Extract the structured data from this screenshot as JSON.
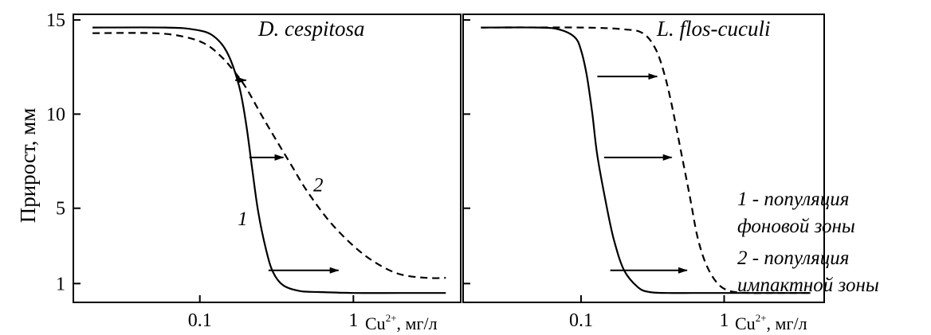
{
  "chart_data": [
    {
      "type": "line",
      "title": "D. cespitosa",
      "ylabel": "Прирост, мм",
      "xlabel": "Cu",
      "xlabel_sup": "2+",
      "xlabel_unit": ", мг/л",
      "xscale": "log",
      "xlim": [
        0.015,
        5
      ],
      "ylim": [
        0,
        15.3
      ],
      "x_ticks": [
        0.1,
        1
      ],
      "x_tick_labels": [
        "0.1",
        "1"
      ],
      "y_ticks": [
        1,
        5,
        10,
        15
      ],
      "y_tick_labels": [
        "1",
        "5",
        "10",
        "15"
      ],
      "series": [
        {
          "name": "1",
          "style": "solid",
          "x": [
            0.02,
            0.06,
            0.09,
            0.12,
            0.15,
            0.18,
            0.2,
            0.22,
            0.24,
            0.27,
            0.3,
            0.35,
            0.45,
            0.6,
            1,
            2,
            4
          ],
          "y": [
            14.6,
            14.6,
            14.5,
            14.2,
            13.3,
            11.5,
            9.5,
            7.0,
            4.8,
            2.8,
            1.6,
            0.9,
            0.6,
            0.55,
            0.5,
            0.5,
            0.5
          ]
        },
        {
          "name": "2",
          "style": "dashed",
          "x": [
            0.02,
            0.05,
            0.08,
            0.11,
            0.14,
            0.17,
            0.2,
            0.25,
            0.3,
            0.4,
            0.5,
            0.7,
            1,
            1.4,
            2,
            3,
            4
          ],
          "y": [
            14.3,
            14.3,
            14.1,
            13.7,
            13.0,
            12.2,
            11.4,
            10.0,
            8.9,
            7.2,
            5.9,
            4.3,
            3.0,
            2.1,
            1.5,
            1.3,
            1.3
          ]
        }
      ],
      "arrows": [
        {
          "x1": 0.17,
          "x2": 0.2,
          "y": 11.8
        },
        {
          "x1": 0.21,
          "x2": 0.35,
          "y": 7.7
        },
        {
          "x1": 0.28,
          "x2": 0.8,
          "y": 1.7
        }
      ],
      "labels": [
        {
          "text": "1",
          "x": 0.19,
          "y": 4.1
        },
        {
          "text": "2",
          "x": 0.59,
          "y": 5.9
        }
      ]
    },
    {
      "type": "line",
      "title": "L. flos-cuculi",
      "xlabel": "Cu",
      "xlabel_sup": "2+",
      "xlabel_unit": ", мг/л",
      "xscale": "log",
      "xlim": [
        0.015,
        5
      ],
      "ylim": [
        0,
        15.3
      ],
      "x_ticks": [
        0.1,
        1
      ],
      "x_tick_labels": [
        "0.1",
        "1"
      ],
      "series": [
        {
          "name": "1",
          "style": "solid",
          "x": [
            0.02,
            0.05,
            0.07,
            0.09,
            0.1,
            0.11,
            0.12,
            0.13,
            0.15,
            0.17,
            0.2,
            0.25,
            0.3,
            0.4,
            0.6,
            1,
            2,
            4
          ],
          "y": [
            14.6,
            14.6,
            14.5,
            14.1,
            13.4,
            12.0,
            10.0,
            7.8,
            5.2,
            3.3,
            1.7,
            0.8,
            0.55,
            0.5,
            0.5,
            0.5,
            0.5,
            0.5
          ]
        },
        {
          "name": "2",
          "style": "dashed",
          "x": [
            0.02,
            0.1,
            0.2,
            0.27,
            0.33,
            0.38,
            0.43,
            0.5,
            0.58,
            0.65,
            0.75,
            0.9,
            1.1,
            1.5,
            2,
            4
          ],
          "y": [
            14.6,
            14.6,
            14.5,
            14.3,
            13.5,
            12.2,
            10.5,
            8.0,
            5.5,
            3.5,
            2.0,
            1.0,
            0.6,
            0.5,
            0.5,
            0.5
          ]
        }
      ],
      "arrows": [
        {
          "x1": 0.13,
          "x2": 0.34,
          "y": 12.0
        },
        {
          "x1": 0.145,
          "x2": 0.43,
          "y": 7.7
        },
        {
          "x1": 0.16,
          "x2": 0.55,
          "y": 1.7
        }
      ]
    }
  ],
  "legend": [
    {
      "line1": "1 - популяция",
      "line2": "фоновой зоны"
    },
    {
      "line1": "2 - популяция",
      "line2": "импактной зоны"
    }
  ]
}
